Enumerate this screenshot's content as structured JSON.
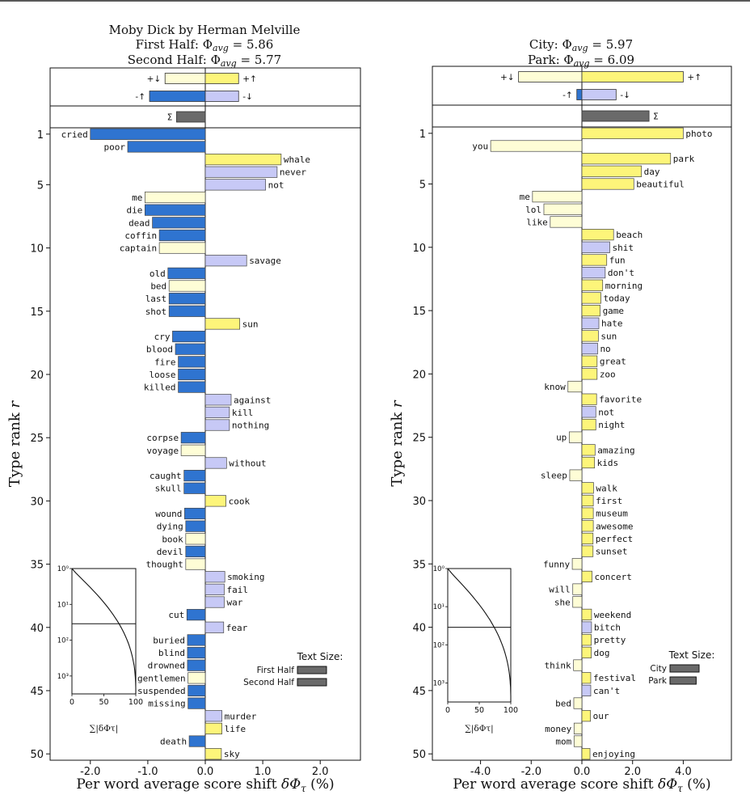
{
  "colors": {
    "neg_down": "#2f74d0",
    "pos_up": "#fdf57a",
    "neg_up": "#fefdd6",
    "pos_down": "#c7c9f6",
    "sum": "#6a6a6a"
  },
  "chart_data": [
    {
      "type": "bar",
      "orientation": "horizontal",
      "title_lines": [
        "Moby Dick by Herman Melville",
        "First Half: Φavg = 5.86",
        "Second Half: Φavg = 5.77"
      ],
      "title_parts": {
        "line1": "Moby Dick by Herman Melville",
        "ref_name": "First Half",
        "ref_value": "5.86",
        "comp_name": "Second Half",
        "comp_value": "5.77"
      },
      "xlabel": "Per word average score shift δΦτ (%)",
      "ylabel": "Type rank r",
      "xlim": [
        -2.7,
        2.7
      ],
      "xticks": [
        -2.0,
        -1.0,
        0.0,
        1.0,
        2.0
      ],
      "xtick_labels": [
        "-2.0",
        "-1.0",
        "0.0",
        "1.0",
        "2.0"
      ],
      "ylim": [
        0.5,
        50.5
      ],
      "yticks": [
        1,
        5,
        10,
        15,
        20,
        25,
        30,
        35,
        40,
        45,
        50
      ],
      "summary": {
        "plus_down": -0.7,
        "plus_up": 0.58,
        "minus_up": -0.97,
        "minus_down": 0.58,
        "sigma": -0.5,
        "labels": {
          "plus_down": "+↓",
          "plus_up": "+↑",
          "minus_up": "-↑",
          "minus_down": "-↓",
          "sigma": "Σ"
        }
      },
      "words": [
        {
          "rank": 1,
          "word": "cried",
          "value": -2.0,
          "kind": "neg_down"
        },
        {
          "rank": 2,
          "word": "poor",
          "value": -1.35,
          "kind": "neg_down"
        },
        {
          "rank": 3,
          "word": "whale",
          "value": 1.32,
          "kind": "pos_up"
        },
        {
          "rank": 4,
          "word": "never",
          "value": 1.25,
          "kind": "pos_down"
        },
        {
          "rank": 5,
          "word": "not",
          "value": 1.05,
          "kind": "pos_down"
        },
        {
          "rank": 6,
          "word": "me",
          "value": -1.05,
          "kind": "neg_up"
        },
        {
          "rank": 7,
          "word": "die",
          "value": -1.05,
          "kind": "neg_down"
        },
        {
          "rank": 8,
          "word": "dead",
          "value": -0.92,
          "kind": "neg_down"
        },
        {
          "rank": 9,
          "word": "coffin",
          "value": -0.8,
          "kind": "neg_down"
        },
        {
          "rank": 10,
          "word": "captain",
          "value": -0.8,
          "kind": "neg_up"
        },
        {
          "rank": 11,
          "word": "savage",
          "value": 0.72,
          "kind": "pos_down"
        },
        {
          "rank": 12,
          "word": "old",
          "value": -0.65,
          "kind": "neg_down"
        },
        {
          "rank": 13,
          "word": "bed",
          "value": -0.63,
          "kind": "neg_up"
        },
        {
          "rank": 14,
          "word": "last",
          "value": -0.63,
          "kind": "neg_down"
        },
        {
          "rank": 15,
          "word": "shot",
          "value": -0.63,
          "kind": "neg_down"
        },
        {
          "rank": 16,
          "word": "sun",
          "value": 0.6,
          "kind": "pos_up"
        },
        {
          "rank": 17,
          "word": "cry",
          "value": -0.57,
          "kind": "neg_down"
        },
        {
          "rank": 18,
          "word": "blood",
          "value": -0.52,
          "kind": "neg_down"
        },
        {
          "rank": 19,
          "word": "fire",
          "value": -0.47,
          "kind": "neg_down"
        },
        {
          "rank": 20,
          "word": "loose",
          "value": -0.47,
          "kind": "neg_down"
        },
        {
          "rank": 21,
          "word": "killed",
          "value": -0.47,
          "kind": "neg_down"
        },
        {
          "rank": 22,
          "word": "against",
          "value": 0.45,
          "kind": "pos_down"
        },
        {
          "rank": 23,
          "word": "kill",
          "value": 0.42,
          "kind": "pos_down"
        },
        {
          "rank": 24,
          "word": "nothing",
          "value": 0.42,
          "kind": "pos_down"
        },
        {
          "rank": 25,
          "word": "corpse",
          "value": -0.42,
          "kind": "neg_down"
        },
        {
          "rank": 26,
          "word": "voyage",
          "value": -0.42,
          "kind": "neg_up"
        },
        {
          "rank": 27,
          "word": "without",
          "value": 0.37,
          "kind": "pos_down"
        },
        {
          "rank": 28,
          "word": "caught",
          "value": -0.37,
          "kind": "neg_down"
        },
        {
          "rank": 29,
          "word": "skull",
          "value": -0.37,
          "kind": "neg_down"
        },
        {
          "rank": 30,
          "word": "cook",
          "value": 0.36,
          "kind": "pos_up"
        },
        {
          "rank": 31,
          "word": "wound",
          "value": -0.36,
          "kind": "neg_down"
        },
        {
          "rank": 32,
          "word": "dying",
          "value": -0.34,
          "kind": "neg_down"
        },
        {
          "rank": 33,
          "word": "book",
          "value": -0.34,
          "kind": "neg_up"
        },
        {
          "rank": 34,
          "word": "devil",
          "value": -0.34,
          "kind": "neg_down"
        },
        {
          "rank": 35,
          "word": "thought",
          "value": -0.34,
          "kind": "neg_up"
        },
        {
          "rank": 36,
          "word": "smoking",
          "value": 0.34,
          "kind": "pos_down"
        },
        {
          "rank": 37,
          "word": "fail",
          "value": 0.33,
          "kind": "pos_down"
        },
        {
          "rank": 38,
          "word": "war",
          "value": 0.33,
          "kind": "pos_down"
        },
        {
          "rank": 39,
          "word": "cut",
          "value": -0.32,
          "kind": "neg_down"
        },
        {
          "rank": 40,
          "word": "fear",
          "value": 0.32,
          "kind": "pos_down"
        },
        {
          "rank": 41,
          "word": "buried",
          "value": -0.31,
          "kind": "neg_down"
        },
        {
          "rank": 42,
          "word": "blind",
          "value": -0.31,
          "kind": "neg_down"
        },
        {
          "rank": 43,
          "word": "drowned",
          "value": -0.31,
          "kind": "neg_down"
        },
        {
          "rank": 44,
          "word": "gentlemen",
          "value": -0.3,
          "kind": "neg_up"
        },
        {
          "rank": 45,
          "word": "suspended",
          "value": -0.3,
          "kind": "neg_down"
        },
        {
          "rank": 46,
          "word": "missing",
          "value": -0.3,
          "kind": "neg_down"
        },
        {
          "rank": 47,
          "word": "murder",
          "value": 0.29,
          "kind": "pos_down"
        },
        {
          "rank": 48,
          "word": "life",
          "value": 0.29,
          "kind": "pos_up"
        },
        {
          "rank": 49,
          "word": "death",
          "value": -0.28,
          "kind": "neg_down"
        },
        {
          "rank": 50,
          "word": "sky",
          "value": 0.28,
          "kind": "pos_up"
        }
      ],
      "inset": {
        "x_label": "∑|δΦτ|",
        "xticks": [
          0,
          50,
          100
        ],
        "yticks": [
          "10⁰",
          "10¹",
          "10²",
          "10³"
        ],
        "ref_line_fraction": 0.44
      },
      "text_size": {
        "title": "Text Size:",
        "ref_label": "First Half",
        "comp_label": "Second Half",
        "ref_fraction": 0.5,
        "comp_fraction": 0.5
      }
    },
    {
      "type": "bar",
      "orientation": "horizontal",
      "title_lines": [
        "City: Φavg = 5.97",
        "Park: Φavg = 6.09"
      ],
      "title_parts": {
        "line1": "",
        "ref_name": "City",
        "ref_value": "5.97",
        "comp_name": "Park",
        "comp_value": "6.09"
      },
      "xlabel": "Per word average score shift δΦτ (%)",
      "ylabel": "Type rank r",
      "xlim": [
        -5.9,
        5.9
      ],
      "xticks": [
        -4.0,
        -2.0,
        0.0,
        2.0,
        4.0
      ],
      "xtick_labels": [
        "-4.0",
        "-2.0",
        "0.0",
        "2.0",
        "4.0"
      ],
      "ylim": [
        0.5,
        50.5
      ],
      "yticks": [
        1,
        5,
        10,
        15,
        20,
        25,
        30,
        35,
        40,
        45,
        50
      ],
      "summary": {
        "plus_down": -2.5,
        "plus_up": 4.0,
        "minus_up": -0.2,
        "minus_down": 1.35,
        "sigma": 2.65,
        "labels": {
          "plus_down": "+↓",
          "plus_up": "+↑",
          "minus_up": "-↑",
          "minus_down": "-↓",
          "sigma": "Σ"
        }
      },
      "words": [
        {
          "rank": 1,
          "word": "photo",
          "value": 4.0,
          "kind": "pos_up"
        },
        {
          "rank": 2,
          "word": "you",
          "value": -3.6,
          "kind": "neg_up"
        },
        {
          "rank": 3,
          "word": "park",
          "value": 3.5,
          "kind": "pos_up"
        },
        {
          "rank": 4,
          "word": "day",
          "value": 2.35,
          "kind": "pos_up"
        },
        {
          "rank": 5,
          "word": "beautiful",
          "value": 2.05,
          "kind": "pos_up"
        },
        {
          "rank": 6,
          "word": "me",
          "value": -1.95,
          "kind": "neg_up"
        },
        {
          "rank": 7,
          "word": "lol",
          "value": -1.5,
          "kind": "neg_up"
        },
        {
          "rank": 8,
          "word": "like",
          "value": -1.25,
          "kind": "neg_up"
        },
        {
          "rank": 9,
          "word": "beach",
          "value": 1.25,
          "kind": "pos_up"
        },
        {
          "rank": 10,
          "word": "shit",
          "value": 1.1,
          "kind": "pos_down"
        },
        {
          "rank": 11,
          "word": "fun",
          "value": 0.98,
          "kind": "pos_up"
        },
        {
          "rank": 12,
          "word": "don't",
          "value": 0.92,
          "kind": "pos_down"
        },
        {
          "rank": 13,
          "word": "morning",
          "value": 0.82,
          "kind": "pos_up"
        },
        {
          "rank": 14,
          "word": "today",
          "value": 0.75,
          "kind": "pos_up"
        },
        {
          "rank": 15,
          "word": "game",
          "value": 0.72,
          "kind": "pos_up"
        },
        {
          "rank": 16,
          "word": "hate",
          "value": 0.67,
          "kind": "pos_down"
        },
        {
          "rank": 17,
          "word": "sun",
          "value": 0.65,
          "kind": "pos_up"
        },
        {
          "rank": 18,
          "word": "no",
          "value": 0.62,
          "kind": "pos_down"
        },
        {
          "rank": 19,
          "word": "great",
          "value": 0.6,
          "kind": "pos_up"
        },
        {
          "rank": 20,
          "word": "zoo",
          "value": 0.6,
          "kind": "pos_up"
        },
        {
          "rank": 21,
          "word": "know",
          "value": -0.55,
          "kind": "neg_up"
        },
        {
          "rank": 22,
          "word": "favorite",
          "value": 0.58,
          "kind": "pos_up"
        },
        {
          "rank": 23,
          "word": "not",
          "value": 0.55,
          "kind": "pos_down"
        },
        {
          "rank": 24,
          "word": "night",
          "value": 0.55,
          "kind": "pos_up"
        },
        {
          "rank": 25,
          "word": "up",
          "value": -0.5,
          "kind": "neg_up"
        },
        {
          "rank": 26,
          "word": "amazing",
          "value": 0.52,
          "kind": "pos_up"
        },
        {
          "rank": 27,
          "word": "kids",
          "value": 0.5,
          "kind": "pos_up"
        },
        {
          "rank": 28,
          "word": "sleep",
          "value": -0.48,
          "kind": "neg_up"
        },
        {
          "rank": 29,
          "word": "walk",
          "value": 0.46,
          "kind": "pos_up"
        },
        {
          "rank": 30,
          "word": "first",
          "value": 0.45,
          "kind": "pos_up"
        },
        {
          "rank": 31,
          "word": "museum",
          "value": 0.45,
          "kind": "pos_up"
        },
        {
          "rank": 32,
          "word": "awesome",
          "value": 0.45,
          "kind": "pos_up"
        },
        {
          "rank": 33,
          "word": "perfect",
          "value": 0.44,
          "kind": "pos_up"
        },
        {
          "rank": 34,
          "word": "sunset",
          "value": 0.44,
          "kind": "pos_up"
        },
        {
          "rank": 35,
          "word": "funny",
          "value": -0.38,
          "kind": "neg_up"
        },
        {
          "rank": 36,
          "word": "concert",
          "value": 0.4,
          "kind": "pos_up"
        },
        {
          "rank": 37,
          "word": "will",
          "value": -0.36,
          "kind": "neg_up"
        },
        {
          "rank": 38,
          "word": "she",
          "value": -0.36,
          "kind": "neg_up"
        },
        {
          "rank": 39,
          "word": "weekend",
          "value": 0.38,
          "kind": "pos_up"
        },
        {
          "rank": 40,
          "word": "bitch",
          "value": 0.38,
          "kind": "pos_down"
        },
        {
          "rank": 41,
          "word": "pretty",
          "value": 0.37,
          "kind": "pos_up"
        },
        {
          "rank": 42,
          "word": "dog",
          "value": 0.37,
          "kind": "pos_up"
        },
        {
          "rank": 43,
          "word": "think",
          "value": -0.33,
          "kind": "neg_up"
        },
        {
          "rank": 44,
          "word": "festival",
          "value": 0.35,
          "kind": "pos_up"
        },
        {
          "rank": 45,
          "word": "can't",
          "value": 0.35,
          "kind": "pos_down"
        },
        {
          "rank": 46,
          "word": "bed",
          "value": -0.32,
          "kind": "neg_up"
        },
        {
          "rank": 47,
          "word": "our",
          "value": 0.34,
          "kind": "pos_up"
        },
        {
          "rank": 48,
          "word": "money",
          "value": -0.31,
          "kind": "neg_up"
        },
        {
          "rank": 49,
          "word": "mom",
          "value": -0.31,
          "kind": "neg_up"
        },
        {
          "rank": 50,
          "word": "enjoying",
          "value": 0.32,
          "kind": "pos_up"
        }
      ],
      "inset": {
        "x_label": "∑|δΦτ|",
        "xticks": [
          0,
          50,
          100
        ],
        "yticks": [
          "10⁰",
          "10¹",
          "10²",
          "10³"
        ],
        "ref_line_fraction": 0.44
      },
      "text_size": {
        "title": "Text Size:",
        "ref_label": "City",
        "comp_label": "Park",
        "ref_fraction": 0.55,
        "comp_fraction": 0.45
      }
    }
  ]
}
